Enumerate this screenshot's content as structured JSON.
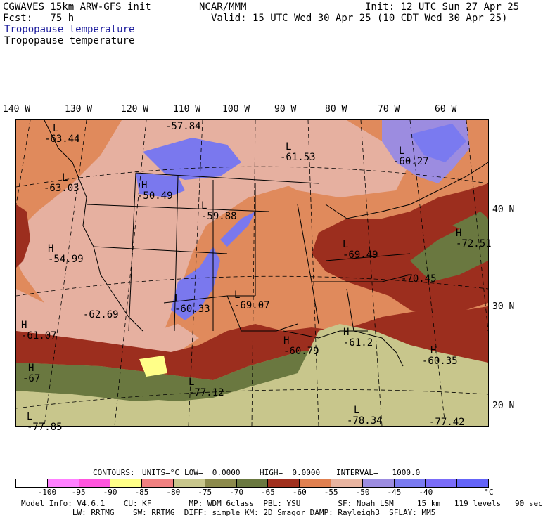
{
  "header": {
    "line1_left": "CGWAVES 15km ARW-GFS init",
    "line1_mid": "NCAR/MMM",
    "line1_right": "Init: 12 UTC Sun 27 Apr 25",
    "line2_left": "Fcst:   75 h",
    "line2_right": "Valid: 15 UTC Wed 30 Apr 25 (10 CDT Wed 30 Apr 25)",
    "field_title_blue": "Tropopause temperature",
    "field_title_black": "Tropopause temperature"
  },
  "map": {
    "lon_labels": [
      "140 W",
      "130 W",
      "120 W",
      "110 W",
      "100 W",
      "90 W",
      "80 W",
      "70 W",
      "60 W"
    ],
    "lat_labels": [
      "40 N",
      "30 N",
      "20 N"
    ],
    "markers": [
      {
        "id": "m1",
        "letter": "L",
        "value": "-63.44"
      },
      {
        "id": "m2",
        "letter": "",
        "value": "-57.84"
      },
      {
        "id": "m3",
        "letter": "L",
        "value": "-61.53"
      },
      {
        "id": "m4",
        "letter": "L",
        "value": "-60.27"
      },
      {
        "id": "m5",
        "letter": "L",
        "value": "-63.03"
      },
      {
        "id": "m6",
        "letter": "H",
        "value": "-50.49"
      },
      {
        "id": "m7",
        "letter": "L",
        "value": "-59.88"
      },
      {
        "id": "m8",
        "letter": "L",
        "value": "-69.49"
      },
      {
        "id": "m9",
        "letter": "H",
        "value": "-72.51"
      },
      {
        "id": "m10",
        "letter": "H",
        "value": "-54.99"
      },
      {
        "id": "m11",
        "letter": "",
        "value": "-70.45"
      },
      {
        "id": "m12",
        "letter": "L",
        "value": "-60.33"
      },
      {
        "id": "m13",
        "letter": "L",
        "value": "-69.07"
      },
      {
        "id": "m14",
        "letter": "",
        "value": "-62.69"
      },
      {
        "id": "m15",
        "letter": "H",
        "value": "-61.07"
      },
      {
        "id": "m16",
        "letter": "H",
        "value": "-60.79"
      },
      {
        "id": "m17",
        "letter": "H",
        "value": "-61.2"
      },
      {
        "id": "m18",
        "letter": "H",
        "value": "-60.35"
      },
      {
        "id": "m19",
        "letter": "H",
        "value": "-67"
      },
      {
        "id": "m20",
        "letter": "L",
        "value": "-77.12"
      },
      {
        "id": "m21",
        "letter": "L",
        "value": "-78.34"
      },
      {
        "id": "m22",
        "letter": "L",
        "value": "-77.85"
      },
      {
        "id": "m23",
        "letter": "",
        "value": "-77.42"
      }
    ]
  },
  "contour_info": {
    "contours": "CONTOURS:",
    "units": "UNITS=°C",
    "low": "LOW=  0.0000",
    "high": "HIGH=  0.0000",
    "interval": "INTERVAL=   1000.0"
  },
  "colorbar": {
    "colors": [
      "#ffffff",
      "#ff80ff",
      "#ff55dd",
      "#ffff88",
      "#f08080",
      "#c8c68c",
      "#8c8a4c",
      "#6a7840",
      "#a0301e",
      "#e08050",
      "#e8b4a0",
      "#9c8ce0",
      "#7a7af0",
      "#7a6cf8",
      "#6464f8"
    ],
    "ticks": [
      "-100",
      "-95",
      "-90",
      "-85",
      "-80",
      "-75",
      "-70",
      "-65",
      "-60",
      "-55",
      "-50",
      "-45",
      "-40",
      "°C"
    ]
  },
  "footer": {
    "line1": "Model Info: V4.6.1    CU: KF        MP: WDM 6class  PBL: YSU        SF: Noah LSM     15 km   119 levels   90 sec",
    "line2": "           LW: RRTMG    SW: RRTMG  DIFF: simple KM: 2D Smagor DAMP: Rayleigh3  SFLAY: MM5"
  }
}
